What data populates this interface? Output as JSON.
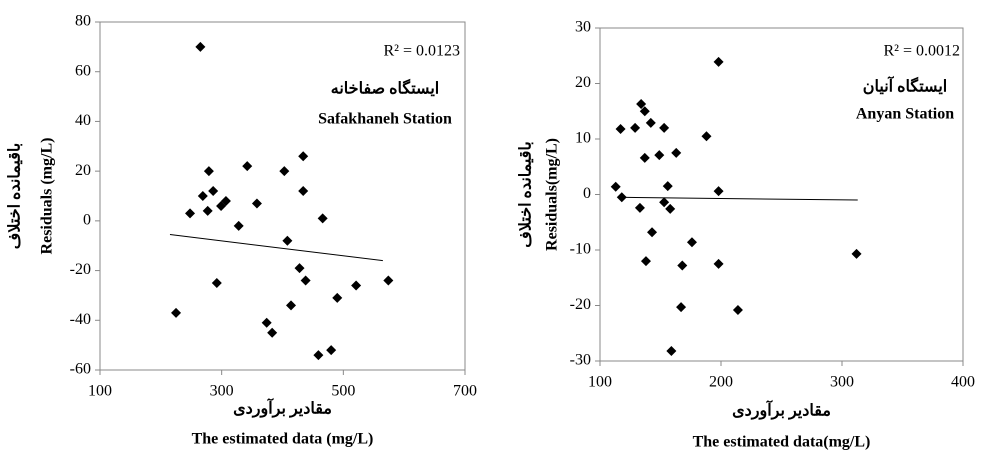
{
  "chart_data": [
    {
      "type": "scatter",
      "x": [
        265,
        248,
        269,
        279,
        277,
        286,
        299,
        307,
        328,
        342,
        358,
        292,
        225,
        374,
        383,
        403,
        408,
        414,
        428,
        434,
        434,
        438,
        466,
        490,
        480,
        459,
        521,
        574
      ],
      "values": [
        70,
        3,
        10,
        20,
        4,
        12,
        6,
        8,
        -2,
        22,
        7,
        -25,
        -37,
        -41,
        -45,
        20,
        -8,
        -34,
        -19,
        26,
        12,
        -24,
        1,
        -31,
        -52,
        -54,
        -26,
        -24
      ],
      "color": "#000000",
      "trendline": {
        "x": [
          215,
          565
        ],
        "values": [
          -5.5,
          -16
        ]
      },
      "xlim": [
        100,
        700
      ],
      "xticks": [
        100,
        300,
        500,
        700
      ],
      "ylim": [
        -60,
        80
      ],
      "yticks": [
        -60,
        -40,
        -20,
        0,
        20,
        40,
        60,
        80
      ],
      "annotations": [
        "R² = 0.0123",
        "ایستگاه صفاخانه",
        "Safakhaneh Station"
      ],
      "x_label_fa": "مقادیر برآوردی",
      "x_label": "The estimated data (mg/L)",
      "y_label_fa": "باقیمانده اختلاف",
      "y_label": "Residuals (mg/L)"
    },
    {
      "type": "scatter",
      "x": [
        113,
        117,
        118,
        129,
        133,
        134,
        137,
        137,
        138,
        142,
        143,
        149,
        153,
        156,
        153,
        158,
        163,
        168,
        167,
        159,
        176,
        188,
        198,
        198,
        198,
        214,
        312
      ],
      "values": [
        1.4,
        11.8,
        -0.5,
        12,
        -2.4,
        16.3,
        15,
        6.6,
        -12,
        12.9,
        -6.8,
        7.1,
        12,
        1.5,
        -1.4,
        -2.6,
        7.5,
        -12.8,
        -20.3,
        -28.2,
        -8.6,
        10.5,
        23.9,
        0.6,
        -12.5,
        -20.8,
        -10.7
      ],
      "color": "#000000",
      "trendline": {
        "x": [
          115,
          313
        ],
        "values": [
          -0.5,
          -1.0
        ]
      },
      "xlim": [
        100,
        400
      ],
      "xticks": [
        100,
        200,
        300,
        400
      ],
      "ylim": [
        -30,
        30
      ],
      "yticks": [
        -30,
        -20,
        -10,
        0,
        10,
        20,
        30
      ],
      "annotations": [
        "R² = 0.0012",
        "ایستگاه آنیان",
        "Anyan Station"
      ],
      "x_label_fa": "مقادیر برآوردی",
      "x_label": "The estimated data(mg/L)",
      "y_label_fa": "باقیمانده اختلاف",
      "y_label": "Residuals(mg/L)"
    }
  ]
}
